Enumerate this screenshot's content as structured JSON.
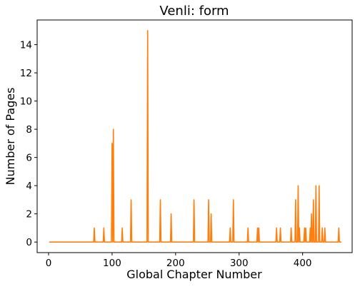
{
  "chart_data": {
    "type": "line",
    "title": "Venli: form",
    "xlabel": "Global Chapter Number",
    "ylabel": "Number of Pages",
    "xlim": [
      -18,
      478
    ],
    "ylim": [
      -0.75,
      15.75
    ],
    "xticks": [
      0,
      100,
      200,
      300,
      400
    ],
    "yticks": [
      0,
      2,
      4,
      6,
      8,
      10,
      12,
      14
    ],
    "grid": false,
    "line_color": "#ff7f0e",
    "x_range": [
      1,
      461
    ],
    "series": [
      {
        "points": [
          [
            72,
            1
          ],
          [
            87,
            1
          ],
          [
            100,
            7
          ],
          [
            102,
            8
          ],
          [
            116,
            1
          ],
          [
            130,
            3
          ],
          [
            156,
            15
          ],
          [
            176,
            3
          ],
          [
            193,
            2
          ],
          [
            229,
            3
          ],
          [
            252,
            3
          ],
          [
            256,
            2
          ],
          [
            291,
            3
          ],
          [
            286,
            1
          ],
          [
            314,
            1
          ],
          [
            329,
            1
          ],
          [
            331,
            1
          ],
          [
            359,
            1
          ],
          [
            365,
            1
          ],
          [
            382,
            1
          ],
          [
            389,
            3
          ],
          [
            393,
            4
          ],
          [
            395,
            1
          ],
          [
            403,
            1
          ],
          [
            405,
            1
          ],
          [
            412,
            1
          ],
          [
            414,
            2
          ],
          [
            417,
            3
          ],
          [
            421,
            4
          ],
          [
            426,
            4
          ],
          [
            431,
            1
          ],
          [
            435,
            1
          ],
          [
            457,
            1
          ]
        ]
      }
    ]
  }
}
